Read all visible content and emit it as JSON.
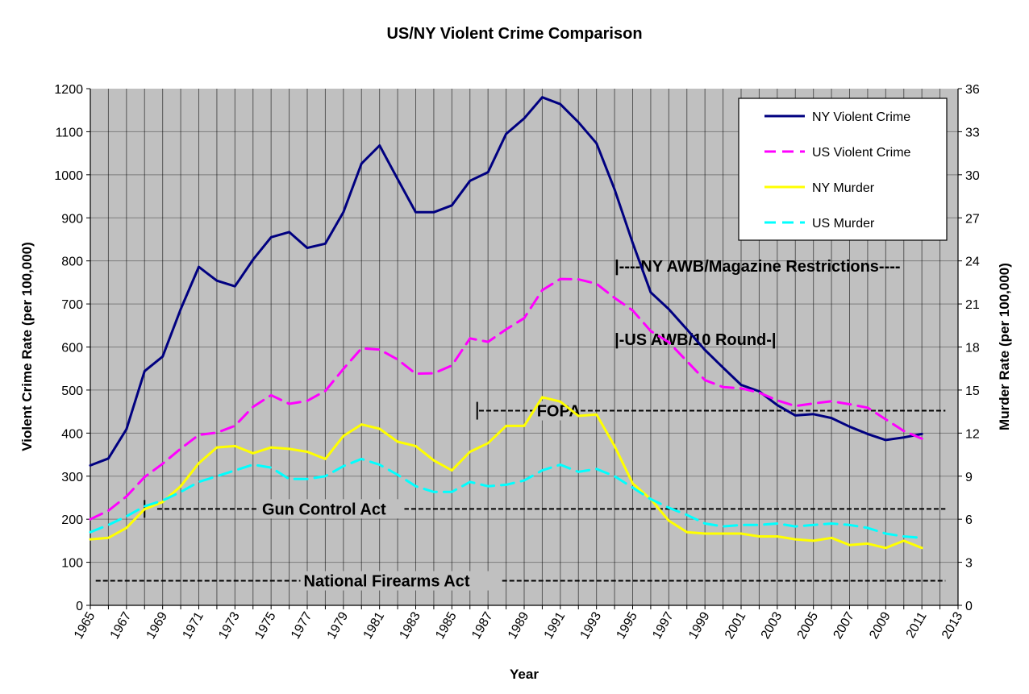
{
  "chart_data": {
    "type": "line",
    "title": "US/NY Violent Crime Comparison",
    "xlabel": "Year",
    "ylabel": "Violent Crime Rate (per 100,000)",
    "y2label": "Murder Rate (per 100,000)",
    "xlim": [
      1965,
      2013
    ],
    "ylim": [
      0,
      1200
    ],
    "y2lim": [
      0,
      36
    ],
    "grid": true,
    "legend_position": "top-right",
    "x_ticks": [
      "1965",
      "1967",
      "1969",
      "1971",
      "1973",
      "1975",
      "1977",
      "1979",
      "1981",
      "1983",
      "1985",
      "1987",
      "1989",
      "1991",
      "1993",
      "1995",
      "1997",
      "1999",
      "2001",
      "2003",
      "2005",
      "2007",
      "2009",
      "2011",
      "2013"
    ],
    "y_ticks": [
      "0",
      "100",
      "200",
      "300",
      "400",
      "500",
      "600",
      "700",
      "800",
      "900",
      "1000",
      "1100",
      "1200"
    ],
    "y2_ticks": [
      "0",
      "3",
      "6",
      "9",
      "12",
      "15",
      "18",
      "21",
      "24",
      "27",
      "30",
      "33",
      "36"
    ],
    "x": [
      1965,
      1966,
      1967,
      1968,
      1969,
      1970,
      1971,
      1972,
      1973,
      1974,
      1975,
      1976,
      1977,
      1978,
      1979,
      1980,
      1981,
      1982,
      1983,
      1984,
      1985,
      1986,
      1987,
      1988,
      1989,
      1990,
      1991,
      1992,
      1993,
      1994,
      1995,
      1996,
      1997,
      1998,
      1999,
      2000,
      2001,
      2002,
      2003,
      2004,
      2005,
      2006,
      2007,
      2008,
      2009,
      2010,
      2011
    ],
    "series": [
      {
        "name": "NY Violent Crime",
        "axis": "left",
        "color": "#000080",
        "style": "solid",
        "values": [
          325,
          341,
          409,
          544,
          578,
          688,
          786,
          754,
          741,
          803,
          855,
          867,
          830,
          840,
          913,
          1026,
          1068,
          990,
          913,
          913,
          929,
          986,
          1006,
          1095,
          1131,
          1180,
          1164,
          1122,
          1073,
          966,
          842,
          727,
          688,
          641,
          593,
          552,
          512,
          497,
          465,
          441,
          444,
          435,
          415,
          398,
          384,
          390,
          398
        ]
      },
      {
        "name": "US Violent Crime",
        "axis": "left",
        "color": "#ff00ff",
        "style": "dash",
        "values": [
          200,
          220,
          253,
          298,
          329,
          364,
          396,
          401,
          417,
          461,
          488,
          468,
          475,
          498,
          549,
          597,
          594,
          571,
          538,
          539,
          557,
          620,
          612,
          641,
          667,
          732,
          758,
          757,
          747,
          714,
          685,
          637,
          611,
          567,
          523,
          507,
          504,
          494,
          476,
          463,
          469,
          474,
          467,
          459,
          432,
          405,
          387
        ]
      },
      {
        "name": "NY Murder",
        "axis": "right",
        "color": "#ffff00",
        "style": "solid",
        "values": [
          4.6,
          4.7,
          5.4,
          6.7,
          7.2,
          8.3,
          9.9,
          11.0,
          11.1,
          10.6,
          11.0,
          10.9,
          10.7,
          10.2,
          11.8,
          12.6,
          12.3,
          11.4,
          11.1,
          10.1,
          9.4,
          10.7,
          11.3,
          12.5,
          12.5,
          14.5,
          14.2,
          13.2,
          13.3,
          11.1,
          8.5,
          7.4,
          5.9,
          5.1,
          5.0,
          5.0,
          5.0,
          4.8,
          4.8,
          4.6,
          4.5,
          4.7,
          4.2,
          4.3,
          4.0,
          4.5,
          4.0
        ]
      },
      {
        "name": "US Murder",
        "axis": "right",
        "color": "#00ffff",
        "style": "dash",
        "values": [
          5.1,
          5.6,
          6.2,
          6.9,
          7.3,
          7.9,
          8.6,
          9.0,
          9.4,
          9.8,
          9.6,
          8.8,
          8.8,
          9.0,
          9.7,
          10.2,
          9.8,
          9.1,
          8.3,
          7.9,
          7.9,
          8.6,
          8.3,
          8.4,
          8.7,
          9.4,
          9.8,
          9.3,
          9.5,
          9.0,
          8.2,
          7.4,
          6.8,
          6.3,
          5.7,
          5.5,
          5.6,
          5.6,
          5.7,
          5.5,
          5.6,
          5.7,
          5.6,
          5.4,
          5.0,
          4.8,
          4.7
        ]
      }
    ],
    "annotations": [
      {
        "text": "|----NY AWB/Magazine Restrictions----",
        "x": 1994.0,
        "y": 788
      },
      {
        "text": "|-US AWB/10 Round-|",
        "x": 1994.0,
        "y": 618
      },
      {
        "text": "FOPA",
        "x": 1989.7,
        "y": 452,
        "line_from": 1986.5,
        "line_to": 2012.3,
        "tick_at": 1986.4
      },
      {
        "text": "Gun Control Act",
        "x": 1974.5,
        "y": 224,
        "line_from": 1968.7,
        "line_to": 2012.3,
        "tick_at": 1968.0
      },
      {
        "text": "National Firearms Act",
        "x": 1976.8,
        "y": 57,
        "line_from": 1965.3,
        "line_to": 2012.3
      }
    ]
  }
}
